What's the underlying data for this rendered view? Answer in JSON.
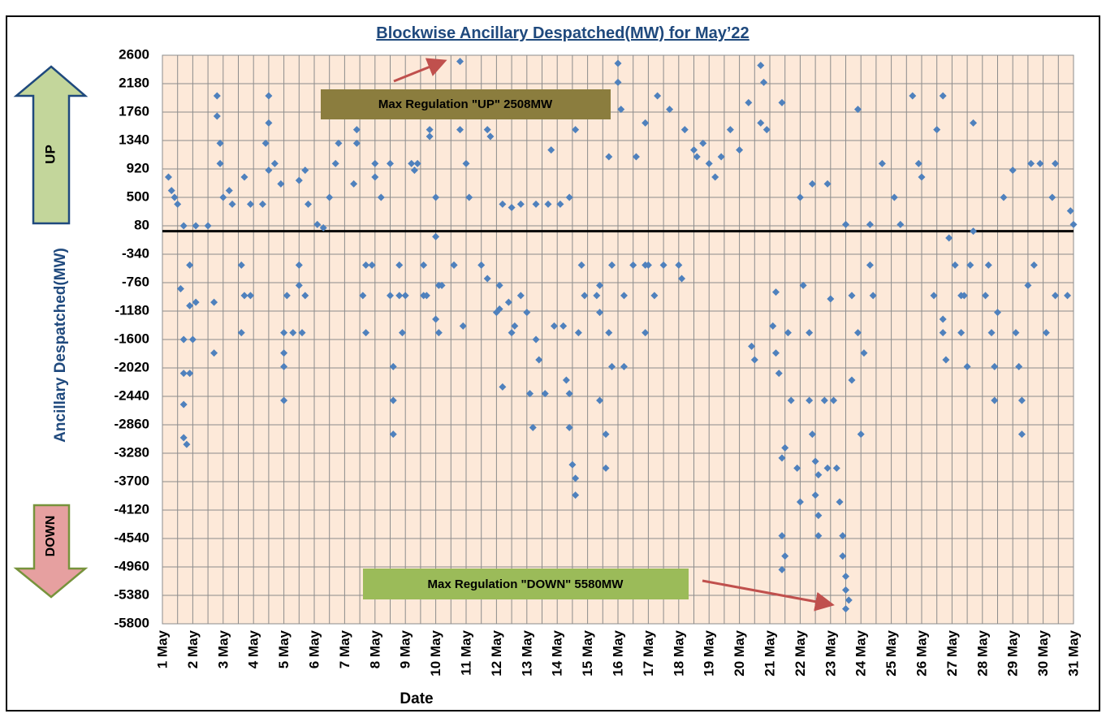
{
  "chart_data": {
    "type": "scatter",
    "title": "Blockwise Ancillary Despatched(MW) for  May’22",
    "x_label": "Date",
    "y_label": "Ancillary Despatched(MW)",
    "annotations": {
      "up_box": "Max Regulation \"UP\" 2508MW",
      "down_box": "Max Regulation \"DOWN\" 5580MW",
      "up_arrow": "UP",
      "down_arrow": "DOWN"
    },
    "color": "#4f81bd",
    "grid": true,
    "hline": 0,
    "xlim": [
      1,
      31
    ],
    "ylim": [
      -5800,
      2600
    ],
    "yticks": [
      2600,
      2180,
      1760,
      1340,
      920,
      500,
      80,
      -340,
      -760,
      -1180,
      -1600,
      -2020,
      -2440,
      -2860,
      -3280,
      -3700,
      -4120,
      -4540,
      -4960,
      -5380,
      -5800
    ],
    "xticks": [
      {
        "value": 1,
        "label": "1 May"
      },
      {
        "value": 2,
        "label": "2 May"
      },
      {
        "value": 3,
        "label": "3 May"
      },
      {
        "value": 4,
        "label": "4 May"
      },
      {
        "value": 5,
        "label": "5 May"
      },
      {
        "value": 6,
        "label": "6 May"
      },
      {
        "value": 7,
        "label": "7 May"
      },
      {
        "value": 8,
        "label": "8 May"
      },
      {
        "value": 9,
        "label": "9 May"
      },
      {
        "value": 10,
        "label": "10 May"
      },
      {
        "value": 11,
        "label": "11 May"
      },
      {
        "value": 12,
        "label": "12 May"
      },
      {
        "value": 13,
        "label": "13 May"
      },
      {
        "value": 14,
        "label": "14 May"
      },
      {
        "value": 15,
        "label": "15 May"
      },
      {
        "value": 16,
        "label": "16 May"
      },
      {
        "value": 17,
        "label": "17 May"
      },
      {
        "value": 18,
        "label": "18 May"
      },
      {
        "value": 19,
        "label": "19 May"
      },
      {
        "value": 20,
        "label": "20 May"
      },
      {
        "value": 21,
        "label": "21 May"
      },
      {
        "value": 22,
        "label": "22 May"
      },
      {
        "value": 23,
        "label": "23 May"
      },
      {
        "value": 24,
        "label": "24 May"
      },
      {
        "value": 25,
        "label": "25 May"
      },
      {
        "value": 26,
        "label": "26 May"
      },
      {
        "value": 27,
        "label": "27 May"
      },
      {
        "value": 28,
        "label": "28 May"
      },
      {
        "value": 29,
        "label": "29 May"
      },
      {
        "value": 30,
        "label": "30 May"
      },
      {
        "value": 31,
        "label": "31 May"
      }
    ],
    "x": [
      1.2,
      1.3,
      1.4,
      1.5,
      1.6,
      1.7,
      1.7,
      1.7,
      1.7,
      1.8,
      1.9,
      1.9,
      1.9,
      2.0,
      2.1,
      1.7,
      2.1,
      2.5,
      2.7,
      2.7,
      2.8,
      2.8,
      2.9,
      2.9,
      3.0,
      3.2,
      3.3,
      3.6,
      3.7,
      3.9,
      3.6,
      3.7,
      3.9,
      4.5,
      4.5,
      4.4,
      4.5,
      4.3,
      4.7,
      4.9,
      5.0,
      5.0,
      5.0,
      5.0,
      5.1,
      5.3,
      5.5,
      5.5,
      5.6,
      5.7,
      5.5,
      5.7,
      5.8,
      6.1,
      6.3,
      6.5,
      6.7,
      6.8,
      7.4,
      7.4,
      7.3,
      7.7,
      7.6,
      7.7,
      7.9,
      8.0,
      8.0,
      8.2,
      8.5,
      8.5,
      8.6,
      8.6,
      8.6,
      8.8,
      8.8,
      8.9,
      9.0,
      9.2,
      9.3,
      9.4,
      9.6,
      9.6,
      9.7,
      9.8,
      9.8,
      10.0,
      10.0,
      10.0,
      10.1,
      10.1,
      10.2,
      10.6,
      10.6,
      10.8,
      10.8,
      10.9,
      11.0,
      11.1,
      11.5,
      11.7,
      11.7,
      11.8,
      12.0,
      12.1,
      12.1,
      12.2,
      12.4,
      12.5,
      12.6,
      12.8,
      12.8,
      13.0,
      13.1,
      13.2,
      13.3,
      13.4,
      13.6,
      13.7,
      13.8,
      13.9,
      14.1,
      14.2,
      14.3,
      14.4,
      14.4,
      14.5,
      14.6,
      14.6,
      14.6,
      14.7,
      14.8,
      14.9,
      15.3,
      15.4,
      15.4,
      15.4,
      15.6,
      15.6,
      15.7,
      15.7,
      15.8,
      15.8,
      16.0,
      16.0,
      16.1,
      16.2,
      16.2,
      16.5,
      16.6,
      16.9,
      16.9,
      17.0,
      16.9,
      17.2,
      17.3,
      17.5,
      17.7,
      18.0,
      18.1,
      18.2,
      18.5,
      18.6,
      18.8,
      19.0,
      19.4,
      19.7,
      20.0,
      20.3,
      20.4,
      20.5,
      20.7,
      20.7,
      20.8,
      20.9,
      21.1,
      21.2,
      21.2,
      21.3,
      21.4,
      21.5,
      21.4,
      21.5,
      21.4,
      21.4,
      21.6,
      21.7,
      21.9,
      22.0,
      22.1,
      22.3,
      22.3,
      22.4,
      22.5,
      22.6,
      22.5,
      22.6,
      22.6,
      22.8,
      22.9,
      23.0,
      23.1,
      23.2,
      23.3,
      23.4,
      23.4,
      23.5,
      23.5,
      23.5,
      23.6,
      23.7,
      23.7,
      23.9,
      24.0,
      24.1,
      23.9,
      24.3,
      24.4,
      24.7,
      25.1,
      25.7,
      25.9,
      26.0,
      26.4,
      26.5,
      26.7,
      26.7,
      26.7,
      26.8,
      27.1,
      27.3,
      27.3,
      27.4,
      27.5,
      27.6,
      27.7,
      28.1,
      28.2,
      28.3,
      28.4,
      28.4,
      28.5,
      28.7,
      29.0,
      29.1,
      29.3,
      29.2,
      29.3,
      29.5,
      29.7,
      29.9,
      30.1,
      30.3,
      30.4,
      30.8,
      30.9,
      31.0,
      12.2,
      12.5,
      13.3,
      14.4,
      22.0,
      22.4,
      22.9,
      23.5,
      24.3,
      25.3,
      26.9,
      27.7,
      29.6,
      30.4,
      19.2
    ],
    "values": [
      800,
      600,
      500,
      400,
      -850,
      -1600,
      -2100,
      -2560,
      -3050,
      -3150,
      -500,
      -1100,
      -2100,
      -1600,
      -1050,
      80,
      80,
      80,
      -1050,
      -1800,
      2000,
      1700,
      1300,
      1000,
      500,
      600,
      400,
      -500,
      -950,
      -950,
      -1500,
      800,
      400,
      2000,
      1600,
      1300,
      900,
      400,
      1000,
      700,
      -1500,
      -1800,
      -2000,
      -2500,
      -950,
      -1500,
      -500,
      -800,
      -1500,
      -950,
      750,
      900,
      400,
      100,
      50,
      500,
      1000,
      1300,
      1500,
      1300,
      700,
      -500,
      -950,
      -1500,
      -500,
      1000,
      800,
      500,
      1000,
      -950,
      -2000,
      -2500,
      -3000,
      -950,
      -500,
      -1500,
      -950,
      1000,
      900,
      1000,
      -500,
      -950,
      -950,
      1500,
      1400,
      500,
      -80,
      -1300,
      -800,
      -1500,
      -800,
      -500,
      -500,
      2508,
      1500,
      -1400,
      1000,
      500,
      -500,
      1500,
      -700,
      1400,
      -1200,
      -1150,
      -800,
      -2300,
      -1050,
      -1500,
      -1400,
      400,
      -950,
      -1200,
      -2400,
      -2900,
      -1600,
      -1900,
      -2400,
      400,
      1200,
      -1400,
      400,
      -1400,
      -2200,
      -2400,
      -2900,
      -3450,
      -3650,
      -3900,
      1500,
      -1500,
      -500,
      -950,
      -950,
      -800,
      -1200,
      -2500,
      -3000,
      -3500,
      1100,
      -1500,
      -500,
      -2000,
      2480,
      2200,
      1800,
      -2000,
      -950,
      -500,
      1100,
      -500,
      -1500,
      -500,
      1600,
      -950,
      2000,
      -500,
      1800,
      -500,
      -700,
      1500,
      1200,
      1100,
      1300,
      1000,
      1100,
      1500,
      1200,
      1900,
      -1700,
      -1900,
      1600,
      2450,
      2200,
      1500,
      -1400,
      -900,
      -1800,
      -2100,
      -3350,
      -3200,
      -4500,
      -4800,
      -5000,
      1900,
      -1500,
      -2500,
      -3500,
      -4000,
      -800,
      -1500,
      -2500,
      -3000,
      -3400,
      -3600,
      -3900,
      -4200,
      -4500,
      -2500,
      -3500,
      -1000,
      -2500,
      -3500,
      -4000,
      -4500,
      -4800,
      -5100,
      -5300,
      -5580,
      -5450,
      -2200,
      -950,
      -1500,
      -3000,
      -1800,
      1800,
      -500,
      -950,
      1000,
      500,
      2000,
      1000,
      800,
      -950,
      1500,
      -1500,
      -1300,
      2000,
      -1900,
      -500,
      -950,
      -1500,
      -950,
      -2000,
      -500,
      1600,
      -950,
      -500,
      -1500,
      -2500,
      -2000,
      -1200,
      500,
      900,
      -1500,
      -3000,
      -2000,
      -2500,
      -800,
      -500,
      1000,
      -1500,
      500,
      -950,
      -950,
      300,
      100,
      400,
      350,
      400,
      500,
      500,
      700,
      700,
      100,
      100,
      100,
      -100,
      0,
      1000,
      1000,
      800
    ]
  }
}
